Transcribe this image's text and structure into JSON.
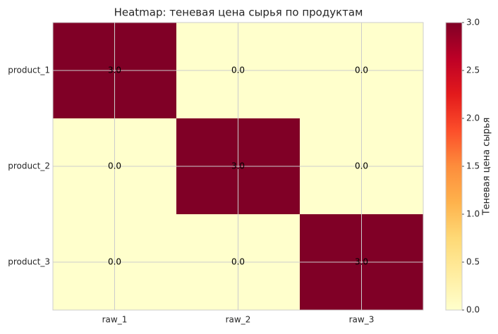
{
  "chart_data": {
    "type": "heatmap",
    "title": "Heatmap: теневая цена сырья по продуктам",
    "x_categories": [
      "raw_1",
      "raw_2",
      "raw_3"
    ],
    "y_categories": [
      "product_1",
      "product_2",
      "product_3"
    ],
    "values": [
      [
        3,
        0,
        0
      ],
      [
        0,
        3,
        0
      ],
      [
        0,
        0,
        3
      ]
    ],
    "value_labels": [
      [
        "3.0",
        "0.0",
        "0.0"
      ],
      [
        "0.0",
        "3.0",
        "0.0"
      ],
      [
        "0.0",
        "0.0",
        "3.0"
      ]
    ],
    "colorbar_label": "Теневая цена сырья",
    "clim": [
      0,
      3
    ],
    "cticks": [
      {
        "value": 0,
        "label": "0.0"
      },
      {
        "value": 0.5,
        "label": "0.5"
      },
      {
        "value": 1,
        "label": "1.0"
      },
      {
        "value": 1.5,
        "label": "1.5"
      },
      {
        "value": 2,
        "label": "2.0"
      },
      {
        "value": 2.5,
        "label": "2.5"
      },
      {
        "value": 3,
        "label": "3.0"
      }
    ],
    "colormap": [
      "#ffffcc",
      "#ffeda0",
      "#fed976",
      "#feb24c",
      "#fd8d3c",
      "#fc4e2a",
      "#e31a1c",
      "#bd0026",
      "#800026"
    ],
    "grid": true
  }
}
